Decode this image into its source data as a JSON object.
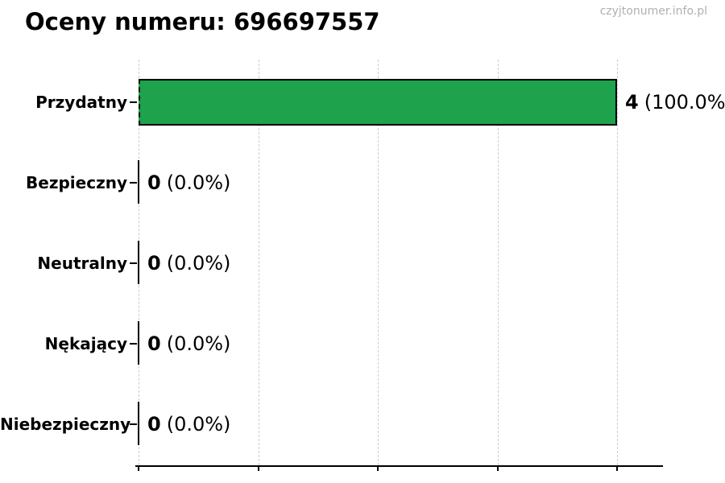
{
  "chart_data": {
    "type": "bar",
    "orientation": "horizontal",
    "title": "Oceny numeru: 696697557",
    "watermark": "czyjtonumer.info.pl",
    "categories": [
      "Przydatny",
      "Bezpieczny",
      "Neutralny",
      "Nękający",
      "Niebezpieczny"
    ],
    "values": [
      4,
      0,
      0,
      0,
      0
    ],
    "percentages": [
      100.0,
      0.0,
      0.0,
      0.0,
      0.0
    ],
    "value_labels": {
      "counts": [
        "4",
        "0",
        "0",
        "0",
        "0"
      ],
      "pcts": [
        "(100.0%)",
        "(0.0%)",
        "(0.0%)",
        "(0.0%)",
        "(0.0%)"
      ]
    },
    "x_ticks": [
      0,
      1,
      2,
      3,
      4
    ],
    "xlim": [
      0,
      4.4
    ],
    "grid": "vertical-dashed",
    "legend": "none",
    "xlabel": "",
    "ylabel": "",
    "colors": {
      "bar_fill": "#1ea24c",
      "bar_edge": "#000000",
      "grid": "#cccccc",
      "axis": "#000000",
      "watermark": "#b0b0b0",
      "text": "#000000"
    }
  }
}
